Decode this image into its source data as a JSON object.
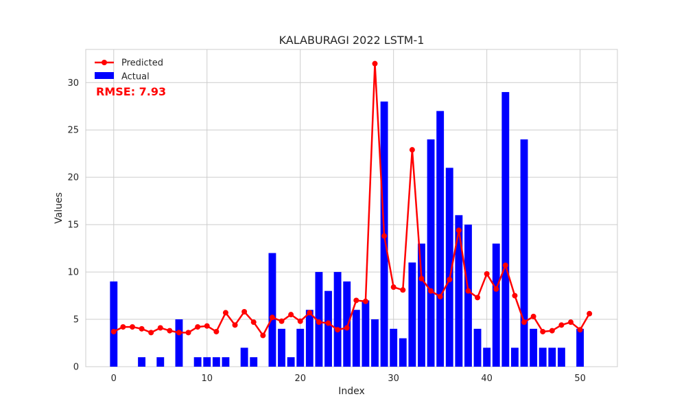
{
  "chart_data": {
    "type": "bar",
    "title": "KALABURAGI 2022 LSTM-1",
    "xlabel": "Index",
    "ylabel": "Values",
    "xlim": [
      -3,
      54
    ],
    "ylim": [
      0,
      33.5
    ],
    "x_ticks": [
      0,
      10,
      20,
      30,
      40,
      50
    ],
    "y_ticks": [
      0,
      5,
      10,
      15,
      20,
      25,
      30
    ],
    "grid": true,
    "legend_position": "top-left",
    "annotation": {
      "text": "RMSE: 7.93",
      "color": "#ff0000"
    },
    "series": [
      {
        "name": "Predicted",
        "kind": "line",
        "color": "#ff0000",
        "x": [
          0,
          1,
          2,
          3,
          4,
          5,
          6,
          7,
          8,
          9,
          10,
          11,
          12,
          13,
          14,
          15,
          16,
          17,
          18,
          19,
          20,
          21,
          22,
          23,
          24,
          25,
          26,
          27,
          28,
          29,
          30,
          31,
          32,
          33,
          34,
          35,
          36,
          37,
          38,
          39,
          40,
          41,
          42,
          43,
          44,
          45,
          46,
          47,
          48,
          49,
          50,
          51
        ],
        "values": [
          3.7,
          4.2,
          4.2,
          4.0,
          3.6,
          4.1,
          3.8,
          3.6,
          3.6,
          4.2,
          4.3,
          3.7,
          5.7,
          4.4,
          5.8,
          4.7,
          3.3,
          5.2,
          4.8,
          5.5,
          4.8,
          5.7,
          4.7,
          4.6,
          3.9,
          4.1,
          7.0,
          6.9,
          32.0,
          13.8,
          8.4,
          8.1,
          22.9,
          9.3,
          8.0,
          7.4,
          9.2,
          14.4,
          8.0,
          7.3,
          9.8,
          8.2,
          10.7,
          7.5,
          4.7,
          5.3,
          3.7,
          3.8,
          4.4,
          4.7,
          3.9,
          5.6
        ]
      },
      {
        "name": "Actual",
        "kind": "bar",
        "color": "#0000ff",
        "x": [
          0,
          1,
          2,
          3,
          4,
          5,
          6,
          7,
          8,
          9,
          10,
          11,
          12,
          13,
          14,
          15,
          16,
          17,
          18,
          19,
          20,
          21,
          22,
          23,
          24,
          25,
          26,
          27,
          28,
          29,
          30,
          31,
          32,
          33,
          34,
          35,
          36,
          37,
          38,
          39,
          40,
          41,
          42,
          43,
          44,
          45,
          46,
          47,
          48,
          49,
          50
        ],
        "values": [
          9,
          0,
          0,
          1,
          0,
          1,
          0,
          5,
          0,
          1,
          1,
          1,
          1,
          0,
          2,
          1,
          0,
          12,
          4,
          1,
          4,
          6,
          10,
          8,
          10,
          9,
          6,
          7,
          5,
          28,
          4,
          3,
          11,
          13,
          24,
          27,
          21,
          16,
          15,
          4,
          2,
          13,
          29,
          2,
          24,
          4,
          2,
          2,
          2,
          0,
          4
        ]
      }
    ]
  }
}
